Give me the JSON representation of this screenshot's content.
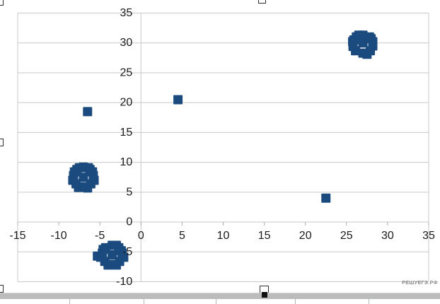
{
  "watermark": "РЕШУЕГЭ.РФ",
  "colors": {
    "marker": "#1b4a7e",
    "gridline": "#c9c9c9",
    "tick": "#a9adb0",
    "label": "#1a1a1a",
    "scrollbar": "#bcbcbc",
    "watermark": "#8a8a8a"
  },
  "chart_data": {
    "type": "scatter",
    "title": "",
    "xlabel": "",
    "ylabel": "",
    "xlim": [
      -15,
      35
    ],
    "ylim": [
      -10,
      35
    ],
    "x_ticks": [
      -15,
      -10,
      -5,
      0,
      5,
      10,
      15,
      20,
      25,
      30,
      35
    ],
    "y_ticks": [
      35,
      30,
      25,
      20,
      15,
      10,
      5,
      0,
      -5,
      -10
    ],
    "grid": "horizontal-only",
    "legend": "none",
    "marker": "square",
    "single_points": [
      [
        -6.5,
        18.5
      ],
      [
        4.5,
        20.5
      ],
      [
        22.5,
        4
      ]
    ],
    "clusters": [
      {
        "center": [
          -7,
          7.5
        ],
        "points": [
          [
            -7,
            7.5
          ],
          [
            -8.2,
            7.8
          ],
          [
            -5.8,
            7.8
          ],
          [
            -7,
            9.2
          ],
          [
            -7,
            5.9
          ],
          [
            -7.8,
            8.8
          ],
          [
            -6.2,
            8.8
          ],
          [
            -7.9,
            6.4
          ],
          [
            -6.1,
            6.4
          ],
          [
            -8.3,
            7
          ],
          [
            -5.7,
            7
          ],
          [
            -7.5,
            9.1
          ],
          [
            -6.5,
            5.7
          ],
          [
            -5.9,
            8.4
          ],
          [
            -8.1,
            8.4
          ],
          [
            -6.4,
            9.1
          ],
          [
            -7.6,
            5.8
          ]
        ]
      },
      {
        "center": [
          27,
          30
        ],
        "points": [
          [
            27,
            30
          ],
          [
            25.75,
            30.2
          ],
          [
            28.2,
            30.2
          ],
          [
            27,
            31.3
          ],
          [
            27,
            28.3
          ],
          [
            26.2,
            31
          ],
          [
            27.8,
            31
          ],
          [
            26.1,
            28.7
          ],
          [
            27.9,
            28.7
          ],
          [
            25.8,
            29.4
          ],
          [
            28.2,
            29.5
          ],
          [
            26.5,
            31.3
          ],
          [
            27.5,
            28.1
          ],
          [
            28,
            30.7
          ],
          [
            25.9,
            30.5
          ]
        ]
      },
      {
        "center": [
          -3.5,
          -5.5
        ],
        "points": [
          [
            -3.5,
            -5.5
          ],
          [
            -4.7,
            -5.2
          ],
          [
            -2.3,
            -5.2
          ],
          [
            -3.5,
            -3.9
          ],
          [
            -3.5,
            -7.1
          ],
          [
            -4.3,
            -4.3
          ],
          [
            -2.7,
            -4.3
          ],
          [
            -4.4,
            -6.6
          ],
          [
            -2.6,
            -6.6
          ],
          [
            -4.9,
            -5.9
          ],
          [
            -2.1,
            -5.9
          ],
          [
            -3,
            -3.9
          ],
          [
            -4,
            -7.2
          ],
          [
            -2.4,
            -4.8
          ],
          [
            -5.3,
            -5.7
          ],
          [
            -3,
            -7.2
          ],
          [
            -4.6,
            -4.6
          ]
        ]
      }
    ]
  }
}
